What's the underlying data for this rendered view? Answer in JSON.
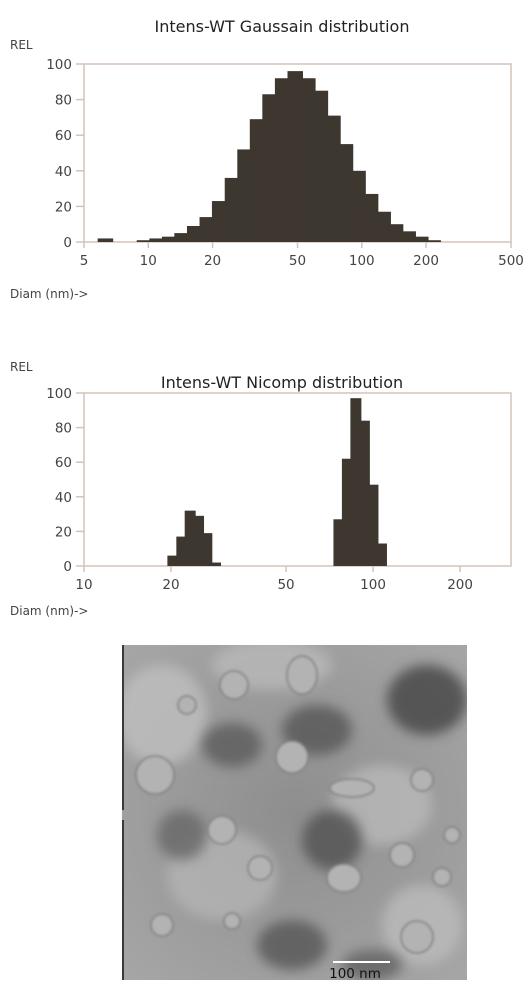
{
  "chart_data": [
    {
      "type": "bar",
      "title": "Intens-WT Gaussain distribution",
      "ylabel": "REL",
      "xlabel": "Diam (nm)->",
      "xscale": "log",
      "xlim": [
        5,
        500
      ],
      "ylim": [
        0,
        100
      ],
      "yticks": [
        0,
        20,
        40,
        60,
        80,
        100
      ],
      "xticks": [
        5,
        10,
        20,
        50,
        100,
        200,
        500
      ],
      "grid": false,
      "series": [
        {
          "x": [
            6.3,
            9.6,
            11,
            12.6,
            14.4,
            16.5,
            18.9,
            21.6,
            24.8,
            28.4,
            32.5,
            37.2,
            42.6,
            48.8,
            55.9,
            64,
            73.3,
            83.9,
            96.1,
            110,
            126,
            144,
            165,
            189,
            216
          ],
          "values": [
            2,
            1,
            2,
            3,
            5,
            9,
            14,
            23,
            36,
            52,
            69,
            83,
            92,
            96,
            92,
            85,
            71,
            55,
            40,
            27,
            17,
            10,
            6,
            3,
            1
          ]
        }
      ]
    },
    {
      "type": "bar",
      "title": "Intens-WT Nicomp distribution",
      "ylabel": "REL",
      "xlabel": "Diam (nm)->",
      "xscale": "log",
      "xlim": [
        10,
        300
      ],
      "ylim": [
        0,
        100
      ],
      "yticks": [
        0,
        20,
        40,
        60,
        80,
        100
      ],
      "xticks": [
        10,
        20,
        50,
        100,
        200
      ],
      "grid": false,
      "series": [
        {
          "x": [
            20.3,
            21.8,
            23.3,
            24.9,
            26.6,
            28.5,
            76.2,
            81.5,
            87.2,
            93.3,
            99.9,
            106.9
          ],
          "values": [
            6,
            17,
            32,
            29,
            19,
            2,
            27,
            62,
            97,
            84,
            47,
            13
          ]
        }
      ]
    }
  ],
  "micrograph": {
    "scale_bar_label": "100 nm"
  }
}
